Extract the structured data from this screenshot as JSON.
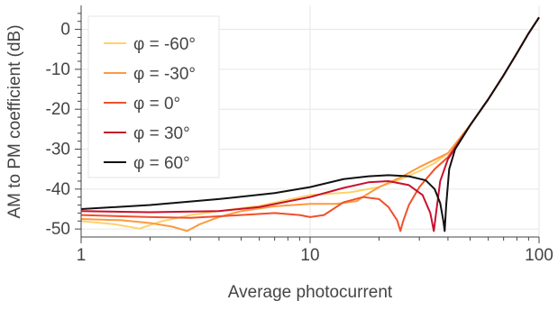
{
  "chart_data": {
    "type": "line",
    "title": "",
    "xlabel": "Average photocurrent",
    "ylabel": "AM to PM coefficient (dB)",
    "x_scale": "log",
    "xlim": [
      1,
      100
    ],
    "ylim": [
      -52,
      6
    ],
    "x_ticks": [
      1,
      10,
      100
    ],
    "x_tick_labels": [
      "1",
      "10",
      "100"
    ],
    "y_ticks": [
      0,
      -10,
      -20,
      -30,
      -40,
      -50
    ],
    "y_tick_labels": [
      "0",
      "-10",
      "-20",
      "-30",
      "-40",
      "-50"
    ],
    "grid": true,
    "legend_position": "top-left",
    "series": [
      {
        "name": "φ = -60°",
        "color": "#fdd36a",
        "points": [
          [
            1,
            -48
          ],
          [
            1.4,
            -48.8
          ],
          [
            1.8,
            -49.9
          ],
          [
            2.2,
            -48.2
          ],
          [
            3,
            -46.5
          ],
          [
            4,
            -45.5
          ],
          [
            6,
            -44.2
          ],
          [
            10,
            -41.5
          ],
          [
            15,
            -40.8
          ],
          [
            20,
            -39.5
          ],
          [
            25,
            -37.5
          ],
          [
            30,
            -35.5
          ],
          [
            35,
            -33.5
          ],
          [
            40,
            -31
          ],
          [
            50,
            -24
          ],
          [
            60,
            -17.5
          ],
          [
            70,
            -11.5
          ],
          [
            80,
            -6
          ],
          [
            90,
            -1
          ],
          [
            100,
            3
          ]
        ]
      },
      {
        "name": "φ = -30°",
        "color": "#fc9a40",
        "points": [
          [
            1,
            -47.5
          ],
          [
            1.5,
            -47.8
          ],
          [
            2,
            -48.5
          ],
          [
            2.5,
            -49.4
          ],
          [
            2.9,
            -50.5
          ],
          [
            3.3,
            -48.8
          ],
          [
            4,
            -47
          ],
          [
            5,
            -45.5
          ],
          [
            7,
            -44.3
          ],
          [
            10,
            -43.7
          ],
          [
            13,
            -43.7
          ],
          [
            16,
            -43
          ],
          [
            17.5,
            -41.5
          ],
          [
            20,
            -39.5
          ],
          [
            25,
            -37
          ],
          [
            30,
            -34.5
          ],
          [
            40,
            -31
          ],
          [
            50,
            -24
          ],
          [
            60,
            -17.5
          ],
          [
            70,
            -11.5
          ],
          [
            80,
            -6
          ],
          [
            90,
            -1
          ],
          [
            100,
            3
          ]
        ]
      },
      {
        "name": "φ = 0°",
        "color": "#f0502a",
        "points": [
          [
            1,
            -46.5
          ],
          [
            2,
            -47
          ],
          [
            3,
            -47.2
          ],
          [
            5,
            -46.5
          ],
          [
            7,
            -46
          ],
          [
            9,
            -46.5
          ],
          [
            10,
            -47
          ],
          [
            11.5,
            -46.5
          ],
          [
            14,
            -43.3
          ],
          [
            17,
            -42
          ],
          [
            20,
            -42.5
          ],
          [
            22,
            -44.5
          ],
          [
            24,
            -47.8
          ],
          [
            24.8,
            -50.5
          ],
          [
            25.5,
            -48
          ],
          [
            27,
            -44
          ],
          [
            30,
            -39.5
          ],
          [
            35,
            -35
          ],
          [
            40,
            -32
          ],
          [
            50,
            -24
          ],
          [
            60,
            -17.5
          ],
          [
            70,
            -11.5
          ],
          [
            80,
            -6
          ],
          [
            90,
            -1
          ],
          [
            100,
            3
          ]
        ]
      },
      {
        "name": "φ = 30°",
        "color": "#c8102e",
        "points": [
          [
            1,
            -45.5
          ],
          [
            2,
            -45.8
          ],
          [
            4,
            -45.5
          ],
          [
            6,
            -44.5
          ],
          [
            10,
            -42
          ],
          [
            14,
            -39.7
          ],
          [
            18,
            -38.3
          ],
          [
            22,
            -38
          ],
          [
            27,
            -39
          ],
          [
            31,
            -41.5
          ],
          [
            33.5,
            -46
          ],
          [
            34.7,
            -50.5
          ],
          [
            35.5,
            -46
          ],
          [
            37,
            -38
          ],
          [
            40,
            -32.5
          ],
          [
            50,
            -24
          ],
          [
            60,
            -17.5
          ],
          [
            70,
            -11.5
          ],
          [
            80,
            -6
          ],
          [
            90,
            -1
          ],
          [
            100,
            3
          ]
        ]
      },
      {
        "name": "φ = 60°",
        "color": "#111111",
        "points": [
          [
            1,
            -45
          ],
          [
            2,
            -44
          ],
          [
            4,
            -42.5
          ],
          [
            7,
            -41
          ],
          [
            10,
            -39.5
          ],
          [
            14,
            -37.5
          ],
          [
            18,
            -36.8
          ],
          [
            22,
            -36.5
          ],
          [
            27,
            -36.8
          ],
          [
            32,
            -37.8
          ],
          [
            35,
            -40
          ],
          [
            37,
            -43.5
          ],
          [
            38.2,
            -48
          ],
          [
            38.7,
            -50.5
          ],
          [
            39.3,
            -44
          ],
          [
            40.5,
            -35
          ],
          [
            43,
            -30
          ],
          [
            50,
            -24
          ],
          [
            60,
            -17.5
          ],
          [
            70,
            -11.5
          ],
          [
            80,
            -6
          ],
          [
            90,
            -1
          ],
          [
            100,
            3
          ]
        ]
      }
    ]
  }
}
